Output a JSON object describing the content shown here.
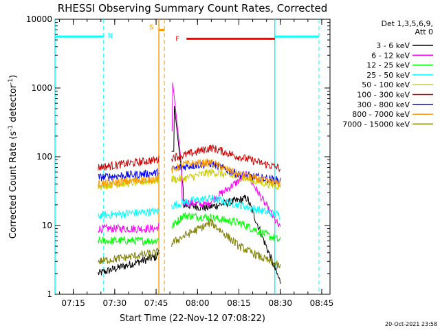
{
  "chart_data": {
    "type": "line",
    "title": "RHESSI Observing Summary Count Rates, Corrected",
    "ylabel_pre": "Corrected Count Rate (s",
    "ylabel_sup1": "-1",
    "ylabel_mid": " detector",
    "ylabel_sup2": "-1",
    "ylabel_post": ")",
    "xlabel": "Start Time (22-Nov-12 07:08:22)",
    "footer": "20-Oct-2021 23:58",
    "y_scale": "log",
    "ylim": [
      1,
      10000
    ],
    "y_ticks": [
      {
        "v": 1,
        "label": "1"
      },
      {
        "v": 10,
        "label": "10"
      },
      {
        "v": 100,
        "label": "100"
      },
      {
        "v": 1000,
        "label": "1000"
      },
      {
        "v": 10000,
        "label": "10000"
      }
    ],
    "xlim": [
      "07:08:22",
      "08:48:00"
    ],
    "x_ticks": [
      "07:15",
      "07:30",
      "07:45",
      "08:00",
      "08:15",
      "08:30",
      "08:45"
    ],
    "legend_header": [
      "Det 1,3,5,6,9,",
      "Att 0"
    ],
    "legend_placement": "right",
    "series": [
      {
        "name": "3 - 6 keV",
        "color": "#000000",
        "gap_values": [
          3,
          3,
          3,
          3,
          2.5,
          3,
          3,
          3
        ],
        "x": [
          "07:24:00",
          "07:45:00",
          "07:55:00",
          "08:03:00",
          "08:18:00",
          "08:30:00"
        ],
        "values": [
          2,
          3.5,
          20,
          18,
          25,
          1.5
        ],
        "peak": {
          "x": "07:51:30",
          "v": 600
        }
      },
      {
        "name": "6 - 12 keV",
        "color": "#ff00ff",
        "x": [
          "07:24:00",
          "07:45:00",
          "07:55:00",
          "08:03:00",
          "08:18:00",
          "08:30:00"
        ],
        "values": [
          9,
          9,
          22,
          20,
          55,
          9
        ],
        "peak": {
          "x": "07:51:00",
          "v": 1200
        }
      },
      {
        "name": "12 - 25 keV",
        "color": "#00ff00",
        "x": [
          "07:24:00",
          "07:45:00",
          "07:55:00",
          "08:05:00",
          "08:15:00",
          "08:30:00"
        ],
        "values": [
          6,
          6,
          14,
          13,
          11,
          6
        ]
      },
      {
        "name": "25 - 50 keV",
        "color": "#00ffff",
        "x": [
          "07:24:00",
          "07:45:00",
          "07:55:00",
          "08:05:00",
          "08:15:00",
          "08:30:00"
        ],
        "values": [
          14,
          16,
          22,
          25,
          20,
          14
        ]
      },
      {
        "name": "50 - 100 keV",
        "color": "#cccc00",
        "x": [
          "07:24:00",
          "07:45:00",
          "07:55:00",
          "08:05:00",
          "08:15:00",
          "08:30:00"
        ],
        "values": [
          38,
          45,
          48,
          60,
          50,
          37
        ]
      },
      {
        "name": "100 - 300 keV",
        "color": "#cc0000",
        "x": [
          "07:24:00",
          "07:45:00",
          "07:55:00",
          "08:05:00",
          "08:15:00",
          "08:30:00"
        ],
        "values": [
          70,
          90,
          105,
          135,
          100,
          68
        ]
      },
      {
        "name": "300 - 800 keV",
        "color": "#0000ff",
        "x": [
          "07:24:00",
          "07:45:00",
          "07:55:00",
          "08:05:00",
          "08:15:00",
          "08:30:00"
        ],
        "values": [
          50,
          58,
          72,
          80,
          55,
          45
        ]
      },
      {
        "name": "800 - 7000 keV",
        "color": "#ff9900",
        "x": [
          "07:24:00",
          "07:45:00",
          "07:55:00",
          "08:05:00",
          "08:15:00",
          "08:30:00"
        ],
        "values": [
          40,
          48,
          78,
          82,
          55,
          40
        ]
      },
      {
        "name": "7000 - 15000 keV",
        "color": "#808000",
        "x": [
          "07:24:00",
          "07:45:00",
          "07:55:00",
          "08:05:00",
          "08:15:00",
          "08:30:00"
        ],
        "values": [
          3,
          4,
          7,
          11,
          5,
          2.5
        ]
      }
    ],
    "annotations": [
      {
        "type": "night",
        "label": "N",
        "color": "#00ffff",
        "start": "07:08:22",
        "end": "07:26:00",
        "level": 5600
      },
      {
        "type": "night",
        "label": "",
        "color": "#00ffff",
        "start": "08:28:00",
        "end": "08:44:00",
        "level": 5600
      },
      {
        "type": "saa",
        "label": "S",
        "color": "#ff9900",
        "start": "07:46:00",
        "end": "07:48:00",
        "level": 7000
      },
      {
        "type": "flare",
        "label": "F",
        "color": "#ff0000",
        "start": "07:56:00",
        "end": "08:28:00",
        "level": 5200
      }
    ],
    "grid": false
  }
}
